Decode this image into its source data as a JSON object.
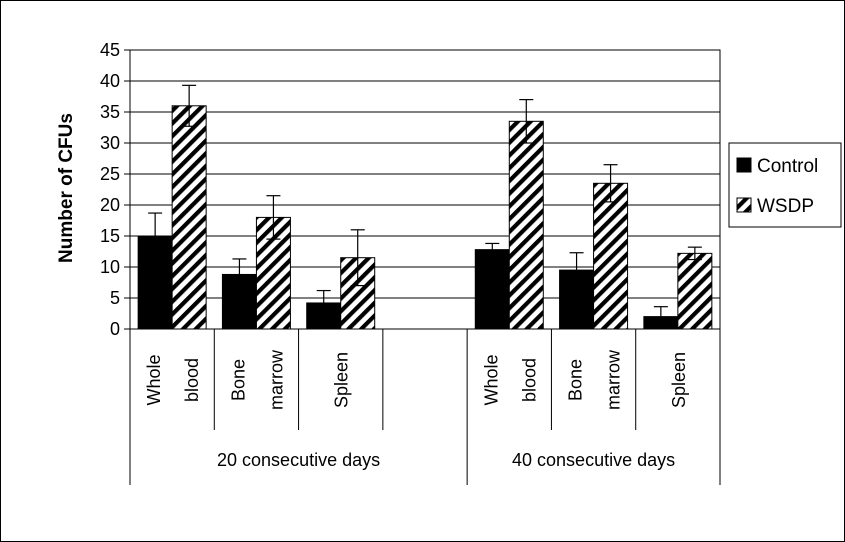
{
  "chart_data": {
    "type": "bar",
    "ylabel": "Number of CFUs",
    "ylim": [
      0,
      45
    ],
    "ytick_step": 5,
    "grid": true,
    "legend_position": "right",
    "groups": [
      {
        "label": "20 consecutive days",
        "subcategories": [
          {
            "lines": [
              "Whole",
              "blood"
            ]
          },
          {
            "lines": [
              "Bone",
              "marrow"
            ]
          },
          {
            "lines": [
              "Spleen"
            ]
          },
          {
            "lines": []
          }
        ]
      },
      {
        "label": "40 consecutive days",
        "subcategories": [
          {
            "lines": [
              "Whole",
              "blood"
            ]
          },
          {
            "lines": [
              "Bone",
              "marrow"
            ]
          },
          {
            "lines": [
              "Spleen"
            ]
          }
        ]
      }
    ],
    "series": [
      {
        "name": "Control",
        "pattern": "solid",
        "values": [
          15,
          8.8,
          4.2,
          null,
          12.8,
          9.5,
          2.0
        ],
        "errors": [
          3.7,
          2.5,
          2.0,
          null,
          1.0,
          2.8,
          1.6
        ]
      },
      {
        "name": "WSDP",
        "pattern": "hatched",
        "values": [
          36.0,
          18.0,
          11.5,
          null,
          33.5,
          23.5,
          12.2
        ],
        "errors": [
          3.3,
          3.5,
          4.5,
          null,
          3.5,
          3.0,
          1.0
        ]
      }
    ],
    "colors": {
      "control": "#000000",
      "wsdp_hatch": "#000000",
      "grid": "#000000",
      "background": "#ffffff"
    }
  }
}
